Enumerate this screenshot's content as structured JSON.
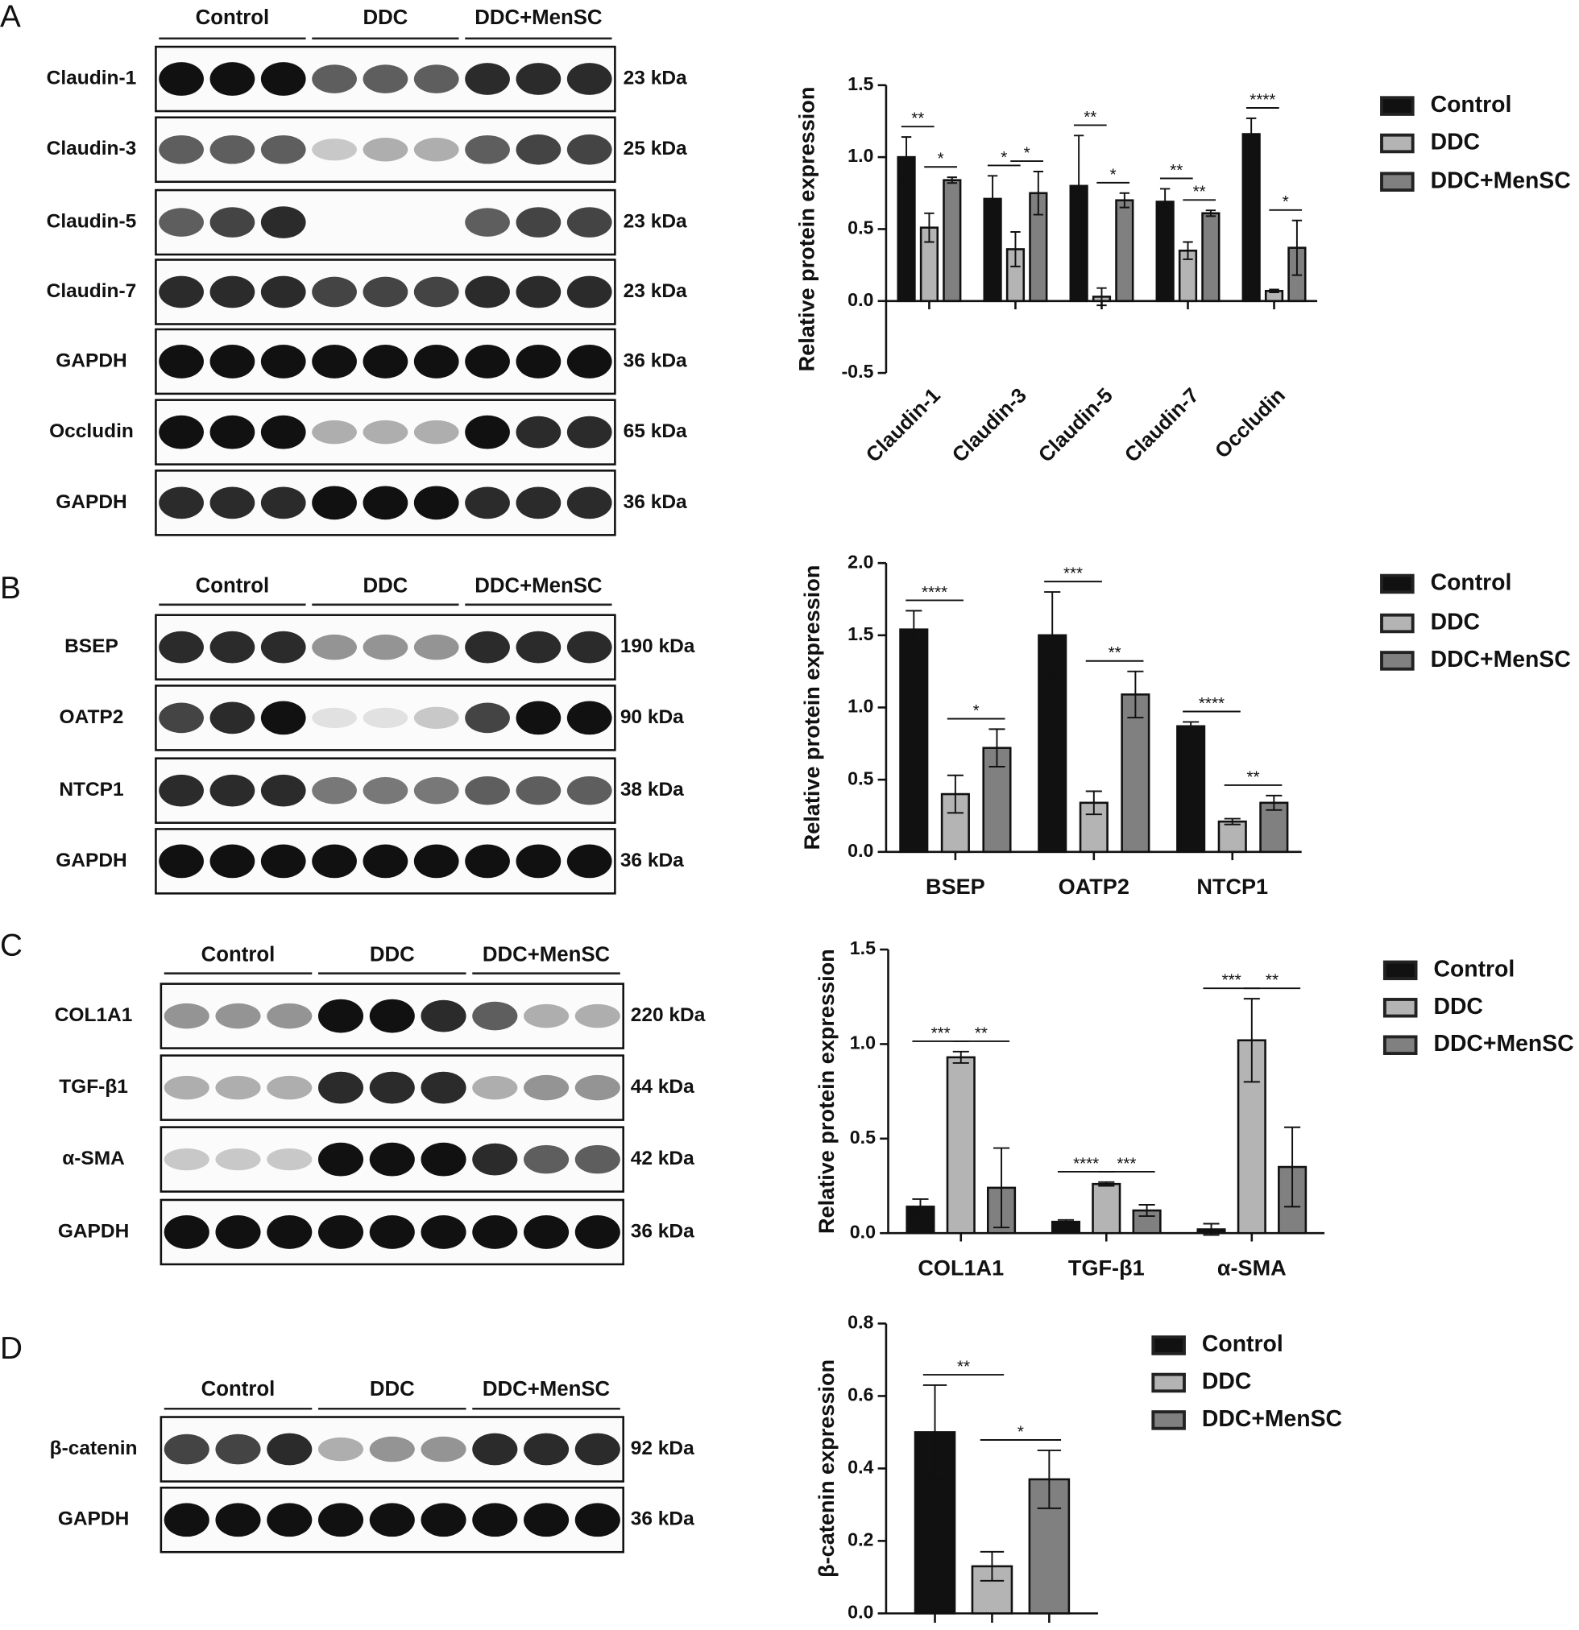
{
  "blots": [
    {
      "panel": "A",
      "groups": [
        "Control",
        "DDC",
        "DDC+MenSC"
      ],
      "rows": [
        {
          "label": "Claudin-1",
          "size": "23 kDa"
        },
        {
          "label": "Claudin-3",
          "size": "25 kDa"
        },
        {
          "label": "Claudin-5",
          "size": "23 kDa"
        },
        {
          "label": "Claudin-7",
          "size": "23 kDa"
        },
        {
          "label": "GAPDH",
          "size": "36 kDa"
        },
        {
          "label": "Occludin",
          "size": "65 kDa"
        },
        {
          "label": "GAPDH",
          "size": "36 kDa"
        }
      ]
    },
    {
      "panel": "B",
      "groups": [
        "Control",
        "DDC",
        "DDC+MenSC"
      ],
      "rows": [
        {
          "label": "BSEP",
          "size": "190 kDa"
        },
        {
          "label": "OATP2",
          "size": "90 kDa"
        },
        {
          "label": "NTCP1",
          "size": "38 kDa"
        },
        {
          "label": "GAPDH",
          "size": "36 kDa"
        }
      ]
    },
    {
      "panel": "C",
      "groups": [
        "Control",
        "DDC",
        "DDC+MenSC"
      ],
      "rows": [
        {
          "label": "COL1A1",
          "size": "220 kDa"
        },
        {
          "label": "TGF-β1",
          "size": "44 kDa"
        },
        {
          "label": "α-SMA",
          "size": "42 kDa"
        },
        {
          "label": "GAPDH",
          "size": "36 kDa"
        }
      ]
    },
    {
      "panel": "D",
      "groups": [
        "Control",
        "DDC",
        "DDC+MenSC"
      ],
      "rows": [
        {
          "label": "β-catenin",
          "size": "92 kDa"
        },
        {
          "label": "GAPDH",
          "size": "36 kDa"
        }
      ]
    }
  ],
  "chart_data": [
    {
      "type": "bar",
      "y_label": "Relative protein expression",
      "categories": [
        "Claudin-1",
        "Claudin-3",
        "Claudin-5",
        "Claudin-7",
        "Occludin"
      ],
      "series": [
        {
          "name": "Control",
          "color": "#111111",
          "values": [
            1.0,
            0.71,
            0.8,
            0.69,
            1.16
          ],
          "errors": [
            0.14,
            0.16,
            0.35,
            0.09,
            0.11
          ]
        },
        {
          "name": "DDC",
          "color": "#b4b4b4",
          "values": [
            0.51,
            0.36,
            0.03,
            0.35,
            0.07
          ],
          "errors": [
            0.1,
            0.12,
            0.06,
            0.06,
            0.01
          ]
        },
        {
          "name": "DDC+MenSC",
          "color": "#808080",
          "values": [
            0.84,
            0.75,
            0.7,
            0.61,
            0.37
          ],
          "errors": [
            0.02,
            0.15,
            0.05,
            0.02,
            0.19
          ]
        }
      ],
      "ylim": [
        -0.5,
        1.5
      ],
      "yticks": [
        -0.5,
        {
          "value": 0,
          "label": "0.0"
        },
        0.5,
        {
          "value": 1,
          "label": "1.0"
        },
        1.5
      ],
      "annotations": [
        {
          "text": "**",
          "category": 0,
          "series": [
            0,
            1
          ]
        },
        {
          "text": "*",
          "category": 0,
          "series": [
            1,
            2
          ]
        },
        {
          "text": "*",
          "category": 1,
          "series": [
            0,
            1
          ]
        },
        {
          "text": "*",
          "category": 1,
          "series": [
            1,
            2
          ]
        },
        {
          "text": "**",
          "category": 2,
          "series": [
            0,
            1
          ]
        },
        {
          "text": "*",
          "category": 2,
          "series": [
            1,
            2
          ]
        },
        {
          "text": "**",
          "category": 3,
          "series": [
            0,
            1
          ]
        },
        {
          "text": "**",
          "category": 3,
          "series": [
            1,
            2
          ]
        },
        {
          "text": "****",
          "category": 4,
          "series": [
            0,
            1
          ]
        },
        {
          "text": "*",
          "category": 4,
          "series": [
            1,
            2
          ]
        }
      ]
    },
    {
      "type": "bar",
      "y_label": "Relative protein expression",
      "categories": [
        "BSEP",
        "OATP2",
        "NTCP1"
      ],
      "series": [
        {
          "name": "Control",
          "color": "#111111",
          "values": [
            1.54,
            1.5,
            0.87
          ],
          "errors": [
            0.13,
            0.3,
            0.03
          ]
        },
        {
          "name": "DDC",
          "color": "#b4b4b4",
          "values": [
            0.4,
            0.34,
            0.21
          ],
          "errors": [
            0.13,
            0.08,
            0.02
          ]
        },
        {
          "name": "DDC+MenSC",
          "color": "#808080",
          "values": [
            0.72,
            1.09,
            0.34
          ],
          "errors": [
            0.13,
            0.16,
            0.05
          ]
        }
      ],
      "ylim": [
        0,
        2
      ],
      "yticks": [
        {
          "value": 0,
          "label": "0.0"
        },
        0.5,
        {
          "value": 1,
          "label": "1.0"
        },
        1.5,
        {
          "value": 2,
          "label": "2.0"
        }
      ],
      "annotations": [
        {
          "text": "****",
          "category": 0,
          "series": [
            0,
            1
          ]
        },
        {
          "text": "*",
          "category": 0,
          "series": [
            1,
            2
          ]
        },
        {
          "text": "***",
          "category": 1,
          "series": [
            0,
            1
          ]
        },
        {
          "text": "**",
          "category": 1,
          "series": [
            1,
            2
          ]
        },
        {
          "text": "****",
          "category": 2,
          "series": [
            0,
            1
          ]
        },
        {
          "text": "**",
          "category": 2,
          "series": [
            1,
            2
          ]
        }
      ]
    },
    {
      "type": "bar",
      "y_label": "Relative protein expression",
      "categories": [
        "COL1A1",
        "TGF-β1",
        "α-SMA"
      ],
      "series": [
        {
          "name": "Control",
          "color": "#111111",
          "values": [
            0.14,
            0.06,
            0.02
          ],
          "errors": [
            0.04,
            0.01,
            0.03
          ]
        },
        {
          "name": "DDC",
          "color": "#b4b4b4",
          "values": [
            0.93,
            0.26,
            1.02
          ],
          "errors": [
            0.03,
            0.01,
            0.22
          ]
        },
        {
          "name": "DDC+MenSC",
          "color": "#808080",
          "values": [
            0.24,
            0.12,
            0.35
          ],
          "errors": [
            0.21,
            0.03,
            0.21
          ]
        }
      ],
      "ylim": [
        0,
        1.5
      ],
      "yticks": [
        {
          "value": 0,
          "label": "0.0"
        },
        0.5,
        {
          "value": 1,
          "label": "1.0"
        },
        1.5
      ],
      "annotations": [
        {
          "text": "***",
          "category": 0,
          "series": [
            0,
            1
          ]
        },
        {
          "text": "**",
          "category": 0,
          "series": [
            1,
            2
          ]
        },
        {
          "text": "****",
          "category": 1,
          "series": [
            0,
            1
          ]
        },
        {
          "text": "***",
          "category": 1,
          "series": [
            1,
            2
          ]
        },
        {
          "text": "***",
          "category": 2,
          "series": [
            0,
            1
          ]
        },
        {
          "text": "**",
          "category": 2,
          "series": [
            1,
            2
          ]
        }
      ]
    },
    {
      "type": "bar",
      "y_label": "β-catenin expression",
      "categories": [
        null
      ],
      "series": [
        {
          "name": "Control",
          "color": "#111111",
          "values": [
            0.5
          ],
          "errors": [
            0.13
          ]
        },
        {
          "name": "DDC",
          "color": "#b4b4b4",
          "values": [
            0.13
          ],
          "errors": [
            0.04
          ]
        },
        {
          "name": "DDC+MenSC",
          "color": "#808080",
          "values": [
            0.37
          ],
          "errors": [
            0.08
          ]
        }
      ],
      "ylim": [
        0,
        0.8
      ],
      "yticks": [
        {
          "value": 0,
          "label": "0.0"
        },
        0.2,
        0.4,
        0.6,
        0.8
      ],
      "annotations": [
        {
          "text": "**",
          "category": 0,
          "series": [
            0,
            1
          ]
        },
        {
          "text": "*",
          "category": 0,
          "series": [
            1,
            2
          ]
        }
      ]
    }
  ]
}
